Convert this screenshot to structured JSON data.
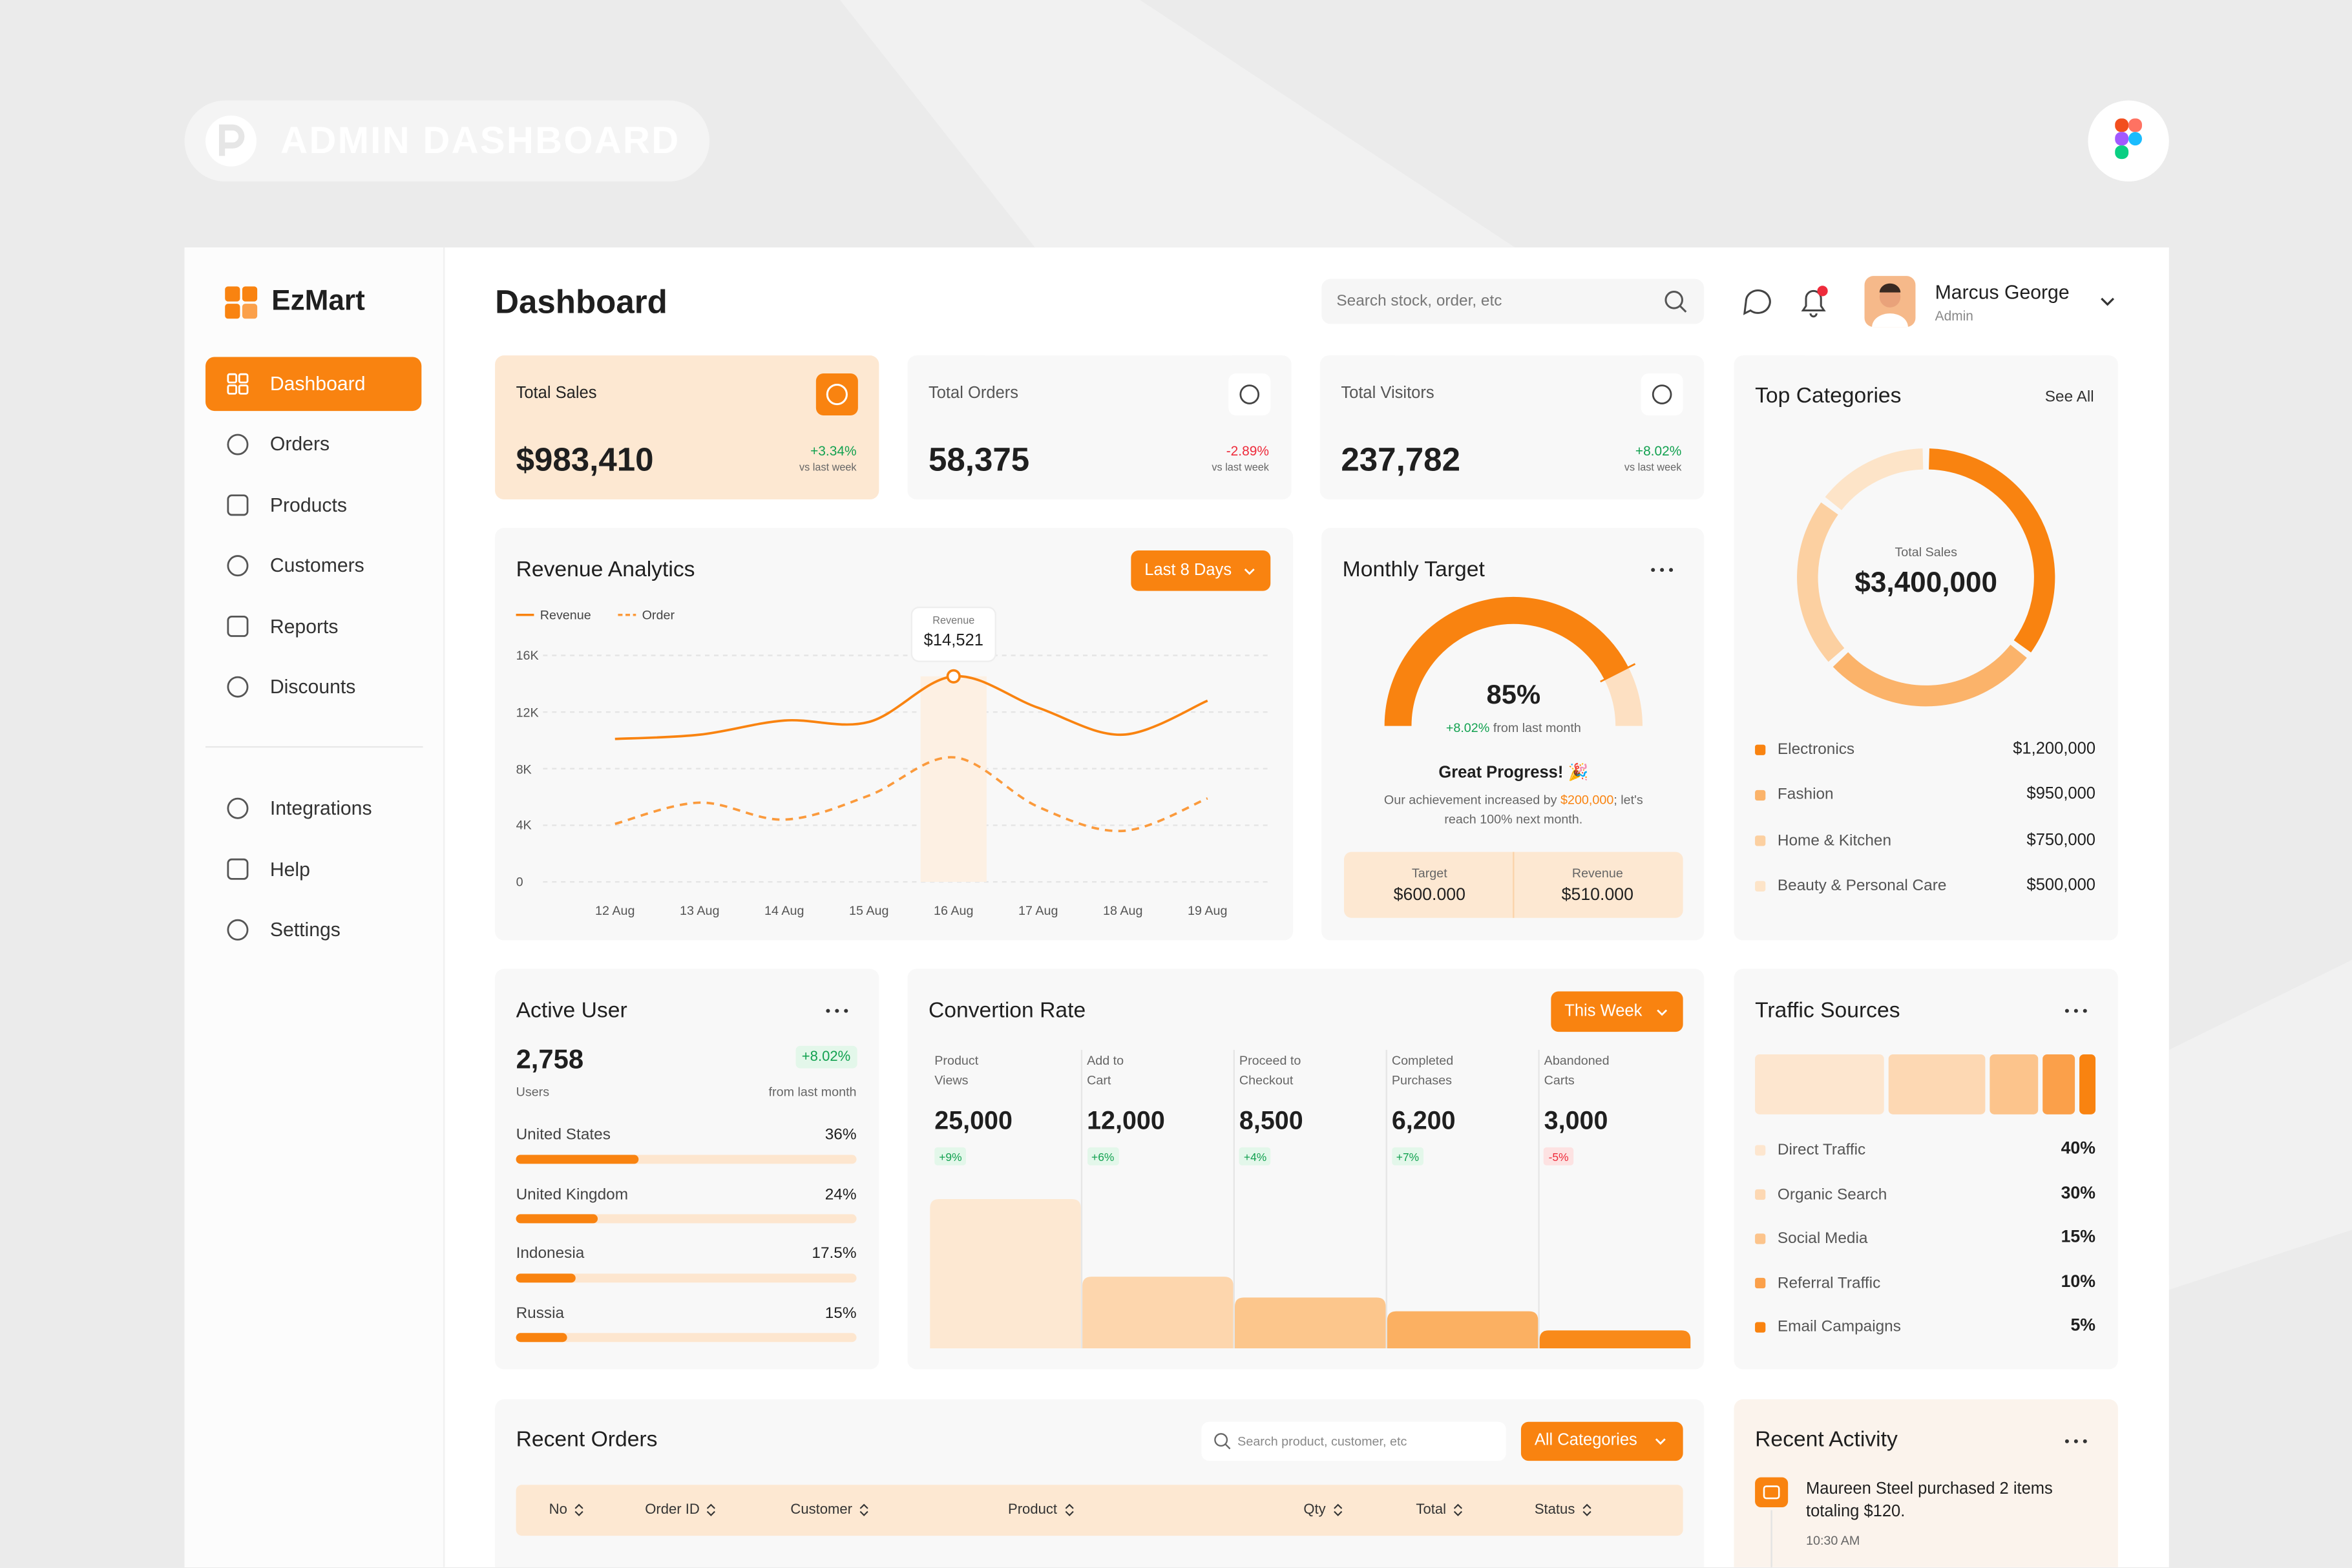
{
  "banner": {
    "title": "ADMIN DASHBOARD"
  },
  "sidebar": {
    "brand": "EzMart",
    "menu": [
      "Dashboard",
      "Orders",
      "Products",
      "Customers",
      "Reports",
      "Discounts"
    ],
    "secondary_menu": [
      "Integrations",
      "Help",
      "Settings"
    ]
  },
  "header": {
    "title": "Dashboard",
    "search_placeholder": "Search stock, order, etc",
    "user": {
      "name": "Marcus George",
      "role": "Admin"
    }
  },
  "stats": [
    {
      "label": "Total Sales",
      "value": "$983,410",
      "change": "+3.34%",
      "period": "vs last week"
    },
    {
      "label": "Total Orders",
      "value": "58,375",
      "change": "-2.89%",
      "period": "vs last week"
    },
    {
      "label": "Total Visitors",
      "value": "237,782",
      "change": "+8.02%",
      "period": "vs last week"
    }
  ],
  "revenue_analytics": {
    "type": "line",
    "title": "Revenue Analytics",
    "filter": "Last 8 Days",
    "categories": [
      "12 Aug",
      "13 Aug",
      "14 Aug",
      "15 Aug",
      "16 Aug",
      "17 Aug",
      "18 Aug",
      "19 Aug"
    ],
    "series": [
      {
        "name": "Revenue",
        "color": "#f98310",
        "values": [
          10100,
          10400,
          11400,
          11300,
          14521,
          12300,
          10400,
          12800
        ],
        "value_labels": [
          null,
          null,
          null,
          null,
          "$14,521",
          null,
          null,
          null
        ]
      },
      {
        "name": "Order",
        "color": "#fb9a3c",
        "dashed": true,
        "values": [
          4100,
          5600,
          4400,
          6100,
          8800,
          5300,
          3600,
          5900
        ]
      }
    ],
    "ylim": [
      0,
      16000
    ],
    "yticks": [
      0,
      {
        "value": 4000,
        "label": "4K"
      },
      {
        "value": 8000,
        "label": "8K"
      },
      {
        "value": 12000,
        "label": "12K"
      },
      {
        "value": 16000,
        "label": "16K"
      }
    ],
    "grid": true
  },
  "monthly_target": {
    "type": "gauge",
    "title": "Monthly Target",
    "value": 85,
    "value_label": "85%",
    "ylim": [
      0,
      100
    ],
    "color": "#f98310",
    "change": "+8.02%",
    "change_note": "from last month",
    "headline": "Great Progress! 🎉",
    "message": [
      "Our achievement increased by ",
      "$200,000",
      "; let's reach 100% next month."
    ],
    "target": {
      "label": "Target",
      "value": "$600.000"
    },
    "revenue": {
      "label": "Revenue",
      "value": "$510.000"
    }
  },
  "top_categories": {
    "type": "pie",
    "title": "Top Categories",
    "action": "See All",
    "center_label": "Total Sales",
    "center_value": "$3,400,000",
    "categories": [
      "Electronics",
      "Fashion",
      "Home & Kitchen",
      "Beauty & Personal Care"
    ],
    "values": [
      1200000,
      950000,
      750000,
      500000
    ],
    "value_labels": [
      "$1,200,000",
      "$950,000",
      "$750,000",
      "$500,000"
    ],
    "colors": [
      "#f98310",
      "#fbb36a",
      "#fcd0a1",
      "#fde4c8"
    ]
  },
  "active_user": {
    "type": "bar",
    "title": "Active User",
    "value": "2,758",
    "unit": "Users",
    "change": "+8.02%",
    "change_note": "from last month",
    "categories": [
      "United States",
      "United Kingdom",
      "Indonesia",
      "Russia"
    ],
    "values": [
      36,
      24,
      17.5,
      15
    ],
    "value_labels": [
      "36%",
      "24%",
      "17.5%",
      "15%"
    ],
    "xlim": [
      0,
      100
    ],
    "color": "#f98310"
  },
  "conversion_rate": {
    "type": "bar",
    "title": "Convertion Rate",
    "filter": "This Week",
    "categories": [
      "Product\nViews",
      "Add to\nCart",
      "Proceed to\nCheckout",
      "Completed\nPurchases",
      "Abandoned\nCarts"
    ],
    "values": [
      25000,
      12000,
      8500,
      6200,
      3000
    ],
    "value_labels": [
      "25,000",
      "12,000",
      "8,500",
      "6,200",
      "3,000"
    ],
    "changes": [
      "+9%",
      "+6%",
      "+4%",
      "+7%",
      "-5%"
    ],
    "ylim": [
      0,
      50000
    ],
    "colors": [
      "#fde8d2",
      "#fdd6ad",
      "#fcc68c",
      "#fbb062",
      "#f98a1a"
    ]
  },
  "traffic_sources": {
    "type": "stacked_bar",
    "title": "Traffic Sources",
    "categories": [
      "Direct Traffic",
      "Organic Search",
      "Social Media",
      "Referral Traffic",
      "Email Campaigns"
    ],
    "values": [
      40,
      30,
      15,
      10,
      5
    ],
    "value_labels": [
      "40%",
      "30%",
      "15%",
      "10%",
      "5%"
    ],
    "xlim": [
      0,
      100
    ],
    "colors": [
      "#fde6cf",
      "#fdd8b3",
      "#fcc48c",
      "#fba04a",
      "#f98310"
    ]
  },
  "recent_orders": {
    "title": "Recent Orders",
    "search_placeholder": "Search product, customer, etc",
    "filter": "All Categories",
    "columns": [
      "No",
      "Order ID",
      "Customer",
      "Product",
      "Qty",
      "Total",
      "Status"
    ]
  },
  "recent_activity": {
    "title": "Recent Activity",
    "items": [
      {
        "text": "Maureen Steel purchased 2 items totaling $120.",
        "time": "10:30 AM"
      }
    ]
  }
}
